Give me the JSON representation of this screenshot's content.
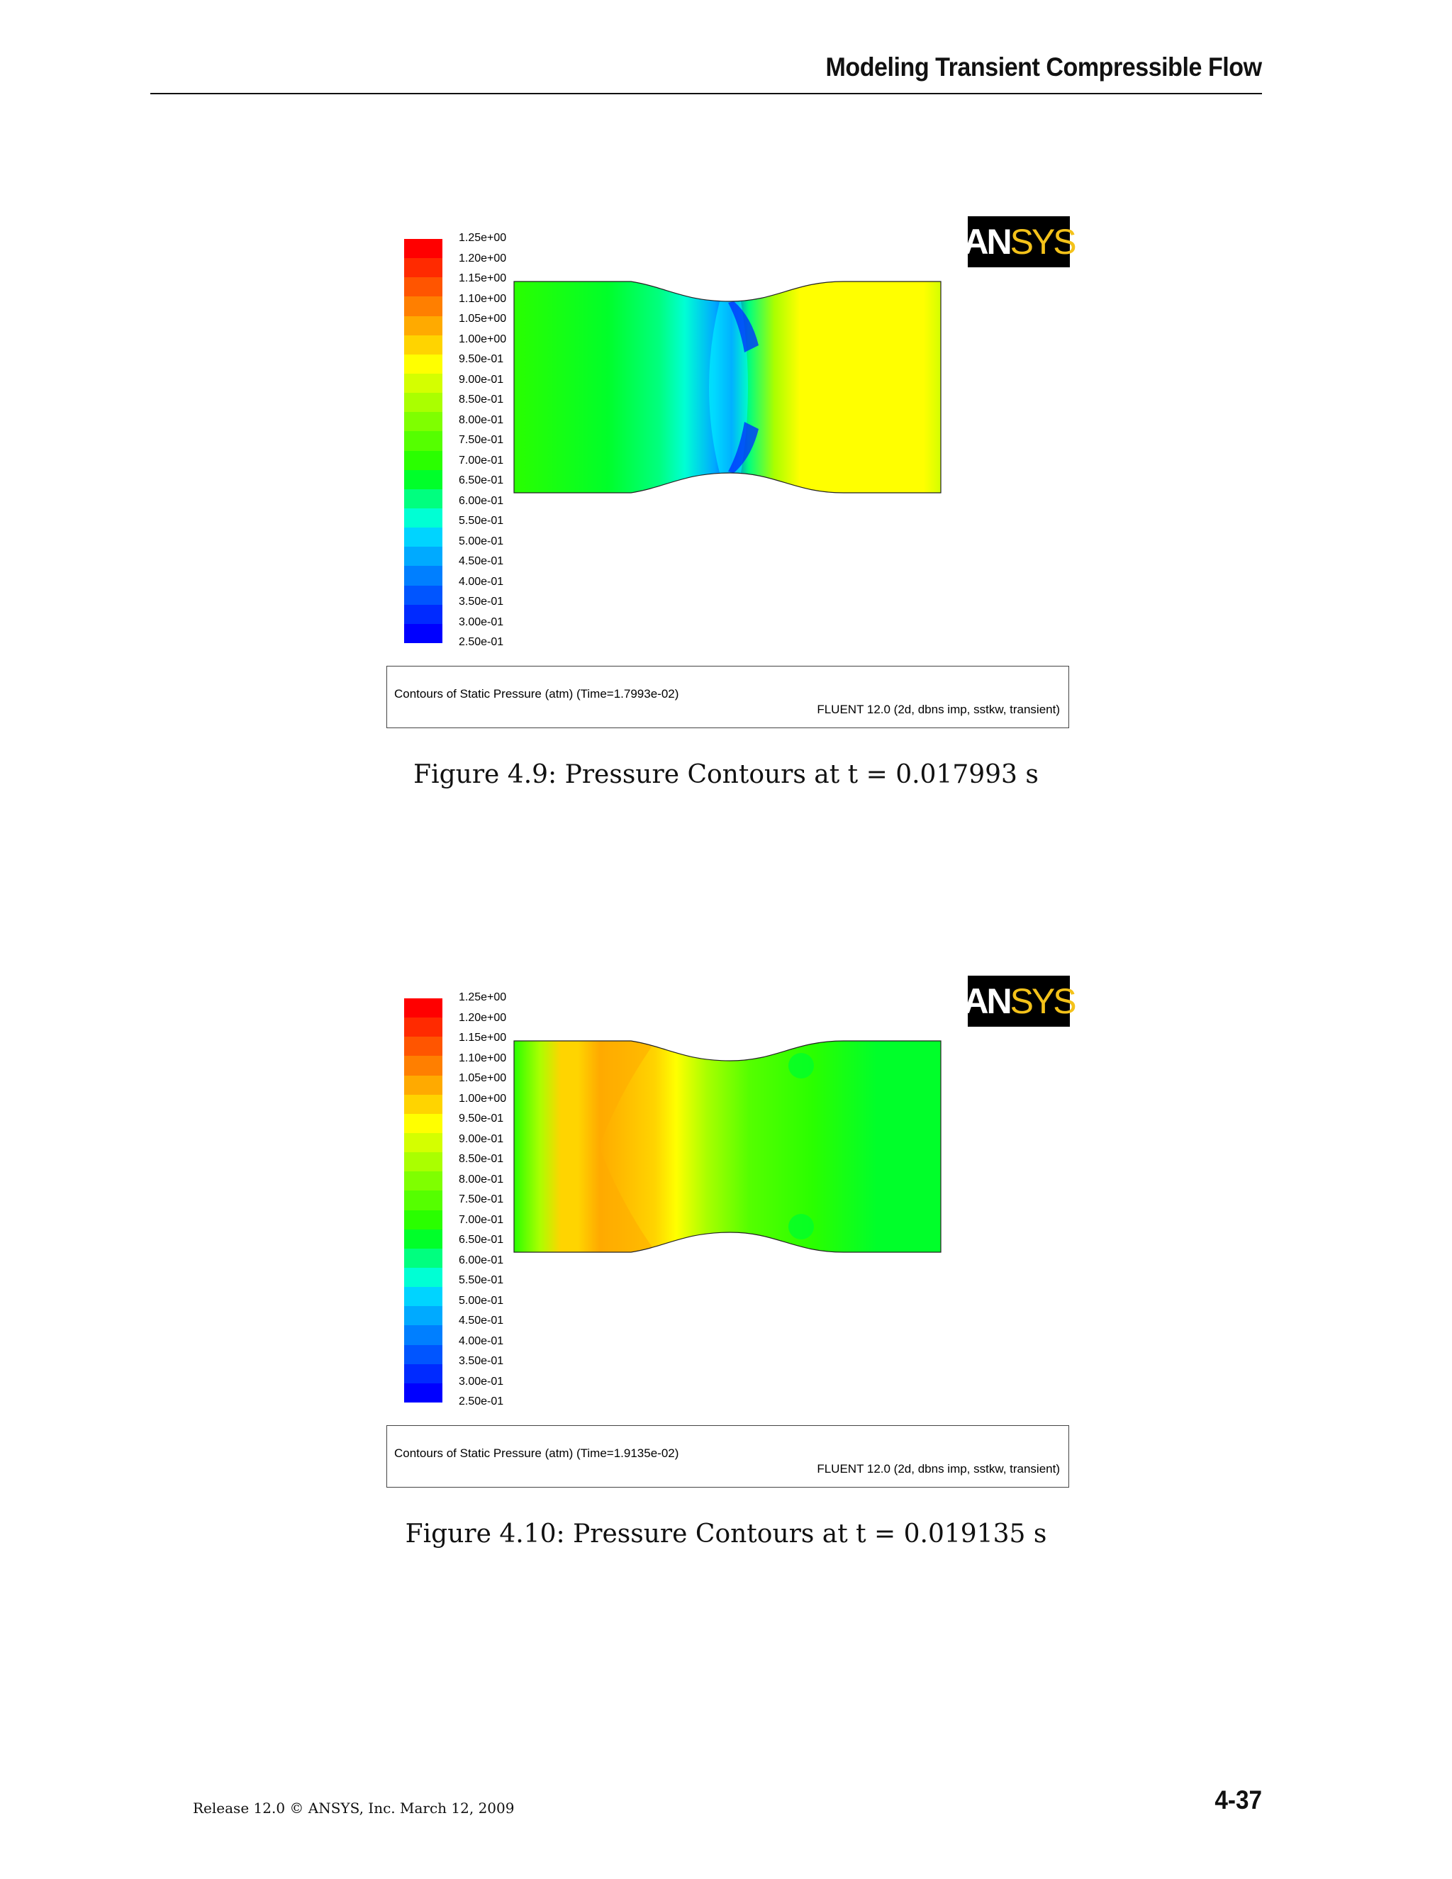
{
  "header": {
    "title": "Modeling Transient Compressible Flow"
  },
  "legend": {
    "labels": [
      "1.25e+00",
      "1.20e+00",
      "1.15e+00",
      "1.10e+00",
      "1.05e+00",
      "1.00e+00",
      "9.50e-01",
      "9.00e-01",
      "8.50e-01",
      "8.00e-01",
      "7.50e-01",
      "7.00e-01",
      "6.50e-01",
      "6.00e-01",
      "5.50e-01",
      "5.00e-01",
      "4.50e-01",
      "4.00e-01",
      "3.50e-01",
      "3.00e-01",
      "2.50e-01"
    ],
    "colors": [
      "#ff0000",
      "#ff2a00",
      "#ff5500",
      "#ff7f00",
      "#ffaa00",
      "#ffd400",
      "#ffff00",
      "#d4ff00",
      "#aaff00",
      "#7fff00",
      "#55ff00",
      "#2aff00",
      "#00ff2a",
      "#00ff7f",
      "#00ffd4",
      "#00d4ff",
      "#00aaff",
      "#007fff",
      "#0055ff",
      "#002aff",
      "#0000ff"
    ]
  },
  "logo": {
    "part1": "AN",
    "part2": "SYS"
  },
  "figures": [
    {
      "info_left": "Contours of Static Pressure (atm)  (Time=1.7993e-02)",
      "info_right": "FLUENT 12.0 (2d, dbns imp, sstkw, transient)",
      "caption": "Figure 4.9:  Pressure Contours at t = 0.017993 s"
    },
    {
      "info_left": "Contours of Static Pressure (atm)  (Time=1.9135e-02)",
      "info_right": "FLUENT 12.0 (2d, dbns imp, sstkw, transient)",
      "caption": "Figure 4.10:  Pressure Contours at t = 0.019135 s"
    }
  ],
  "footer": {
    "release": "Release 12.0 © ANSYS, Inc. March 12, 2009",
    "page_number": "4-37"
  }
}
